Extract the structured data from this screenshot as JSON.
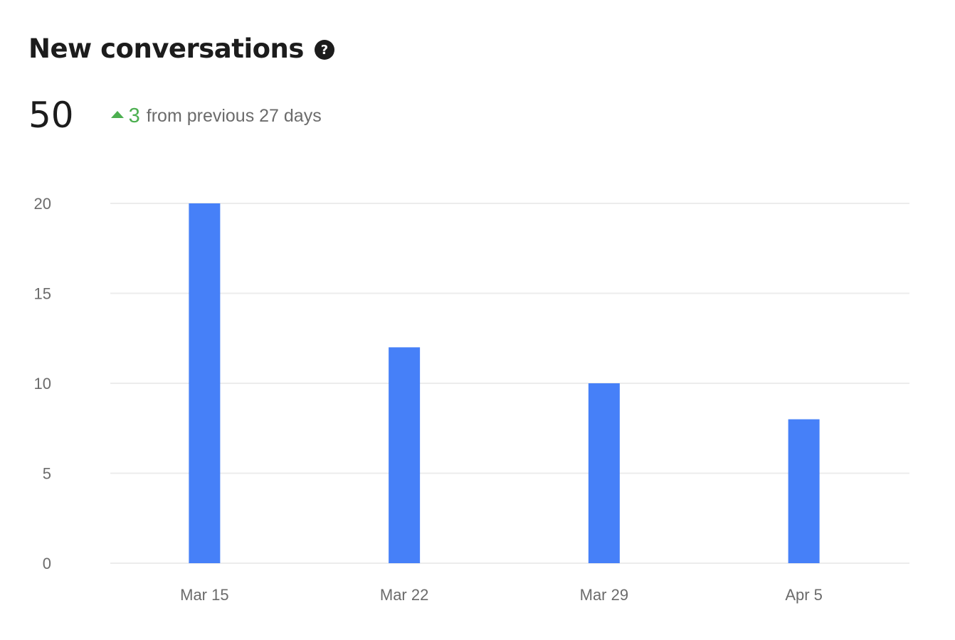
{
  "header": {
    "title": "New conversations",
    "help_icon": "question-circle-icon"
  },
  "metric": {
    "value": "50",
    "delta_icon": "triangle-up-icon",
    "delta_value": "3",
    "delta_text": "from previous 27 days"
  },
  "colors": {
    "bar": "#4680f8",
    "gridline": "#ececec",
    "positive": "#4caf50"
  },
  "chart_data": {
    "type": "bar",
    "title": "New conversations",
    "xlabel": "",
    "ylabel": "",
    "categories": [
      "Mar 15",
      "Mar 22",
      "Mar 29",
      "Apr 5"
    ],
    "values": [
      20,
      12,
      10,
      8
    ],
    "ylim": [
      0,
      20
    ],
    "yticks": [
      0,
      5,
      10,
      15,
      20
    ],
    "grid": true,
    "legend": "none"
  }
}
